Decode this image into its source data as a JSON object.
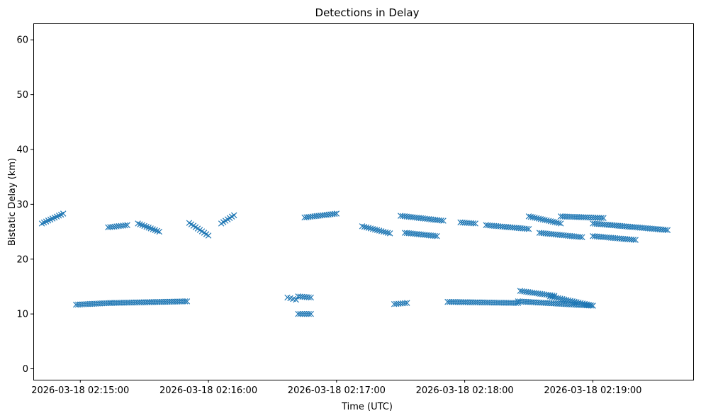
{
  "chart_data": {
    "type": "scatter",
    "title": "Detections in Delay",
    "xlabel": "Time (UTC)",
    "ylabel": "Bistatic Delay (km)",
    "marker": "x",
    "color": "#1f77b4",
    "grid": false,
    "legend": "none",
    "xlim": [
      "2026-03-18 02:14:38",
      "2026-03-18 02:19:47"
    ],
    "ylim": [
      -2,
      63
    ],
    "x_ticks": [
      "2026-03-18 02:15:00",
      "2026-03-18 02:16:00",
      "2026-03-18 02:17:00",
      "2026-03-18 02:18:00",
      "2026-03-18 02:19:00"
    ],
    "y_ticks": [
      0,
      10,
      20,
      30,
      40,
      50,
      60
    ],
    "series": [
      {
        "tracks": [
          {
            "from": "2026-03-18 02:14:42",
            "to": "2026-03-18 02:14:52",
            "y_from": 26.5,
            "y_to": 28.3
          },
          {
            "from": "2026-03-18 02:15:13",
            "to": "2026-03-18 02:15:22",
            "y_from": 25.8,
            "y_to": 26.2
          },
          {
            "from": "2026-03-18 02:15:27",
            "to": "2026-03-18 02:15:37",
            "y_from": 26.5,
            "y_to": 25.0
          },
          {
            "from": "2026-03-18 02:15:51",
            "to": "2026-03-18 02:16:00",
            "y_from": 26.6,
            "y_to": 24.3
          },
          {
            "from": "2026-03-18 02:16:06",
            "to": "2026-03-18 02:16:12",
            "y_from": 26.5,
            "y_to": 28.0
          },
          {
            "from": "2026-03-18 02:16:45",
            "to": "2026-03-18 02:17:00",
            "y_from": 27.6,
            "y_to": 28.3
          },
          {
            "from": "2026-03-18 02:17:12",
            "to": "2026-03-18 02:17:25",
            "y_from": 26.0,
            "y_to": 24.7
          },
          {
            "from": "2026-03-18 02:17:30",
            "to": "2026-03-18 02:17:50",
            "y_from": 27.9,
            "y_to": 27.0
          },
          {
            "from": "2026-03-18 02:17:32",
            "to": "2026-03-18 02:17:47",
            "y_from": 24.8,
            "y_to": 24.2
          },
          {
            "from": "2026-03-18 02:17:58",
            "to": "2026-03-18 02:18:05",
            "y_from": 26.7,
            "y_to": 26.5
          },
          {
            "from": "2026-03-18 02:18:10",
            "to": "2026-03-18 02:18:30",
            "y_from": 26.2,
            "y_to": 25.5
          },
          {
            "from": "2026-03-18 02:18:30",
            "to": "2026-03-18 02:18:45",
            "y_from": 27.8,
            "y_to": 26.5
          },
          {
            "from": "2026-03-18 02:18:35",
            "to": "2026-03-18 02:18:55",
            "y_from": 24.8,
            "y_to": 24.0
          },
          {
            "from": "2026-03-18 02:18:45",
            "to": "2026-03-18 02:19:05",
            "y_from": 27.8,
            "y_to": 27.5
          },
          {
            "from": "2026-03-18 02:19:00",
            "to": "2026-03-18 02:19:35",
            "y_from": 26.5,
            "y_to": 25.3
          },
          {
            "from": "2026-03-18 02:19:00",
            "to": "2026-03-18 02:19:20",
            "y_from": 24.2,
            "y_to": 23.5
          },
          {
            "from": "2026-03-18 02:14:58",
            "to": "2026-03-18 02:15:14",
            "y_from": 11.7,
            "y_to": 12.0
          },
          {
            "from": "2026-03-18 02:15:14",
            "to": "2026-03-18 02:15:50",
            "y_from": 12.0,
            "y_to": 12.3
          },
          {
            "from": "2026-03-18 02:16:37",
            "to": "2026-03-18 02:16:41",
            "y_from": 13.0,
            "y_to": 12.6
          },
          {
            "from": "2026-03-18 02:16:42",
            "to": "2026-03-18 02:16:48",
            "y_from": 13.2,
            "y_to": 13.0
          },
          {
            "from": "2026-03-18 02:16:42",
            "to": "2026-03-18 02:16:48",
            "y_from": 10.0,
            "y_to": 10.0
          },
          {
            "from": "2026-03-18 02:17:27",
            "to": "2026-03-18 02:17:33",
            "y_from": 11.8,
            "y_to": 12.0
          },
          {
            "from": "2026-03-18 02:17:52",
            "to": "2026-03-18 02:18:25",
            "y_from": 12.2,
            "y_to": 12.0
          },
          {
            "from": "2026-03-18 02:18:26",
            "to": "2026-03-18 02:18:42",
            "y_from": 14.2,
            "y_to": 13.3
          },
          {
            "from": "2026-03-18 02:18:25",
            "to": "2026-03-18 02:19:00",
            "y_from": 12.3,
            "y_to": 11.5
          },
          {
            "from": "2026-03-18 02:18:40",
            "to": "2026-03-18 02:19:00",
            "y_from": 13.2,
            "y_to": 11.5
          }
        ]
      }
    ]
  }
}
